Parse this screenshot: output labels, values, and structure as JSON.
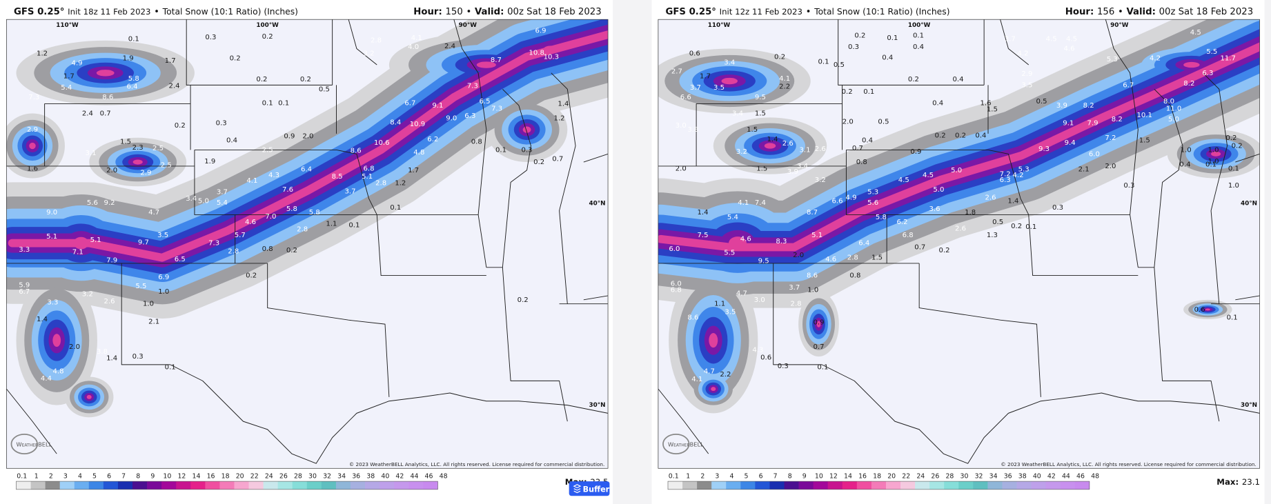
{
  "panels": [
    {
      "model": "GFS 0.25°",
      "init": "Init 18z 11 Feb 2023",
      "separator": "•",
      "product": "Total Snow (10:1 Ratio) (Inches)",
      "hour_label": "Hour:",
      "hour": 150,
      "valid_label": "Valid:",
      "valid": "00z Sat 18 Feb 2023",
      "max_label": "Max:",
      "max": 23.5,
      "map_labels": [
        "0.1",
        "0.3",
        "0.2",
        "0.2",
        "1.2",
        "4.9",
        "1.9",
        "1.7",
        "5.8",
        "6.4",
        "2.4",
        "1.7",
        "5.4",
        "7.3",
        "8.6",
        "0.2",
        "0.2",
        "0.1",
        "0.1",
        "0.3",
        "0.5",
        "2.8",
        "4.1",
        "4.0",
        "3.2",
        "2.4",
        "8.7",
        "10.8",
        "10.3",
        "6.9",
        "7.3",
        "6.5",
        "9.1",
        "6.7",
        "8.4",
        "10.9",
        "9.0",
        "6.3",
        "7.3",
        "8.6",
        "10.6",
        "4.8",
        "6.2",
        "6.8",
        "8.5",
        "6.4",
        "4.3",
        "4.1",
        "7.6",
        "5.8",
        "5.8",
        "7.0",
        "4.6",
        "5.7",
        "2.8",
        "1.1",
        "0.1",
        "0.8",
        "0.2",
        "2.8",
        "0.2",
        "0.1",
        "7.3",
        "6.5",
        "3.5",
        "9.7",
        "7.9",
        "5.1",
        "7.1",
        "9.0",
        "5.1",
        "3.3",
        "9.2",
        "5.6",
        "4.7",
        "3.4",
        "5.0",
        "3.7",
        "5.4",
        "5.5",
        "6.9",
        "1.0",
        "1.0",
        "2.1",
        "3.3",
        "5.9",
        "6.7",
        "1.4",
        "2.6",
        "3.2",
        "3.8",
        "1.4",
        "0.3",
        "0.1",
        "2.0",
        "4.8",
        "4.4",
        "0.2",
        "0.7",
        "0.3",
        "0.1",
        "0.8",
        "0.2",
        "1.2",
        "1.4",
        "2.9",
        "1.6",
        "2.4",
        "0.7",
        "1.5",
        "2.3",
        "2.5",
        "2.5",
        "3.1",
        "2.0",
        "2.9",
        "0.2",
        "0.4",
        "0.9",
        "2.0",
        "2.5",
        "1.9",
        "5.1",
        "2.8",
        "1.2",
        "3.7",
        "1.7"
      ]
    },
    {
      "model": "GFS 0.25°",
      "init": "Init 12z 11 Feb 2023",
      "separator": "•",
      "product": "Total Snow (10:1 Ratio) (Inches)",
      "hour_label": "Hour:",
      "hour": 156,
      "valid_label": "Valid:",
      "valid": "00z Sat 18 Feb 2023",
      "max_label": "Max:",
      "max": 23.1,
      "map_labels": [
        "0.2",
        "0.1",
        "0.1",
        "0.3",
        "0.4",
        "0.4",
        "0.2",
        "0.1",
        "0.5",
        "0.6",
        "3.4",
        "2.7",
        "1.7",
        "4.1",
        "2.2",
        "0.2",
        "0.4",
        "0.2",
        "0.1",
        "0.4",
        "1.6",
        "1.5",
        "0.5",
        "3.9",
        "3.7",
        "4.2",
        "2.9",
        "3.5",
        "4.5",
        "4.5",
        "4.6",
        "5.3",
        "4.2",
        "4.5",
        "5.5",
        "11.7",
        "8.2",
        "6.3",
        "6.7",
        "8.0",
        "11.0",
        "10.1",
        "5.0",
        "8.2",
        "8.2",
        "9.1",
        "7.9",
        "9.3",
        "9.4",
        "6.0",
        "7.2",
        "2.1",
        "2.0",
        "1.5",
        "1.0",
        "1.0",
        "1.0",
        "0.4",
        "0.1",
        "0.1",
        "1.0",
        "0.2",
        "0.2",
        "0.3",
        "5.3",
        "4.2",
        "7.2",
        "6.3",
        "5.0",
        "4.5",
        "5.0",
        "4.5",
        "5.3",
        "5.6",
        "4.9",
        "6.6",
        "8.7",
        "5.8",
        "6.2",
        "6.8",
        "6.4",
        "1.5",
        "2.8",
        "8.6",
        "0.8",
        "0.7",
        "0.2",
        "3.6",
        "1.8",
        "0.5",
        "0.2",
        "0.1",
        "0.3",
        "1.4",
        "2.6",
        "1.3",
        "2.6",
        "5.1",
        "8.3",
        "2.0",
        "4.6",
        "9.5",
        "5.5",
        "4.6",
        "3.7",
        "1.0",
        "2.8",
        "3.0",
        "4.7",
        "3.5",
        "1.1",
        "8.6",
        "6.0",
        "6.8",
        "6.0",
        "7.5",
        "1.4",
        "5.4",
        "4.1",
        "7.4",
        "0.9",
        "0.7",
        "4.3",
        "0.6",
        "0.3",
        "0.1",
        "4.7",
        "2.2",
        "4.1",
        "0.6",
        "0.1",
        "2.0",
        "0.5",
        "0.4",
        "0.9",
        "0.7",
        "0.8",
        "0.2",
        "0.4",
        "0.2",
        "2.6",
        "3.1",
        "3.2",
        "3.9",
        "1.5",
        "3.2",
        "1.5",
        "1.4",
        "2.6",
        "3.4",
        "2.0",
        "3.0",
        "3.8",
        "6.6",
        "9.5",
        "1.5",
        "3.4",
        "3.7",
        "3.5",
        "5.1"
      ]
    }
  ],
  "axes": {
    "lon": [
      "110°W",
      "100°W",
      "90°W"
    ],
    "lat": [
      "40°N",
      "30°N"
    ]
  },
  "copyright": "© 2023 WeatherBELL Analytics, LLC. All rights reserved. License required for commercial distribution.",
  "logo": "WeatherBELL",
  "legend": {
    "ticks": [
      0.1,
      1,
      2,
      3,
      4,
      5,
      6,
      7,
      8,
      9,
      10,
      12,
      14,
      16,
      18,
      20,
      22,
      24,
      26,
      28,
      30,
      32,
      34,
      36,
      38,
      40,
      42,
      44,
      46,
      48
    ],
    "colors": [
      "#eeeeee",
      "#c4c4c4",
      "#8c8c8c",
      "#9fd0f7",
      "#6aaef0",
      "#3d86e6",
      "#2356d6",
      "#1a2fb0",
      "#4b1090",
      "#7a0a99",
      "#a3089a",
      "#c8148f",
      "#e5218a",
      "#f04fa0",
      "#f47bb8",
      "#f7a6cf",
      "#f5c9df",
      "#c9e8ec",
      "#a6e6e4",
      "#86ded9",
      "#6bcfc9",
      "#5fbfc0",
      "#8fb6d8",
      "#a6b0e0",
      "#b5a8e6",
      "#bea0ea",
      "#c598ec",
      "#c890ee",
      "#c88aee"
    ]
  },
  "buffer": "Buffer"
}
